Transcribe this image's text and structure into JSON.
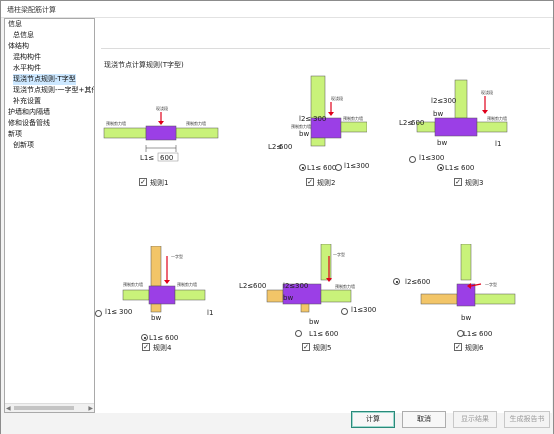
{
  "window": {
    "title": "墙柱梁配筋计算"
  },
  "tree": {
    "items": [
      {
        "label": "信息",
        "level": 0
      },
      {
        "label": "总信息",
        "level": 1
      },
      {
        "label": "体结构",
        "level": 0
      },
      {
        "label": "混构构件",
        "level": 1
      },
      {
        "label": "水平构件",
        "level": 1
      },
      {
        "label": "现浇节点规则-T字型",
        "level": 1,
        "selected": true
      },
      {
        "label": "现浇节点规则-一字型+其他",
        "level": 1
      },
      {
        "label": "补充设置",
        "level": 1
      },
      {
        "label": "护墙和内隔墙",
        "level": 0
      },
      {
        "label": "修和设备管线",
        "level": 0
      },
      {
        "label": "新项",
        "level": 0
      },
      {
        "label": "创新项",
        "level": 1
      }
    ]
  },
  "main": {
    "heading": "现浇节点计算规则(T字型)"
  },
  "rules": [
    {
      "label": "规则1",
      "checked": true
    },
    {
      "label": "规则2",
      "checked": true
    },
    {
      "label": "规则3",
      "checked": true
    },
    {
      "label": "规则4",
      "checked": true
    },
    {
      "label": "规则5",
      "checked": true
    },
    {
      "label": "规则6",
      "checked": true
    }
  ],
  "diagram_text": {
    "cast_segment": "现浇段",
    "precast_wall": "预制剪力墙",
    "dash_shape": "一字型",
    "bw": "bw",
    "l1_leq": "l1≤",
    "l2_leq": "l2≤",
    "l1": "l1",
    "L1_leq": "L1≤",
    "L2_leq": "L2≤",
    "v300": "300",
    "v600": "600"
  },
  "buttons": {
    "calculate": "计算",
    "cancel": "取消",
    "show_result": "显示结果",
    "generate_report": "生成报告书"
  },
  "colors": {
    "green": "#c9f27a",
    "purple": "#9b3fe6",
    "yellow": "#f2c568",
    "red": "#e0001a"
  }
}
